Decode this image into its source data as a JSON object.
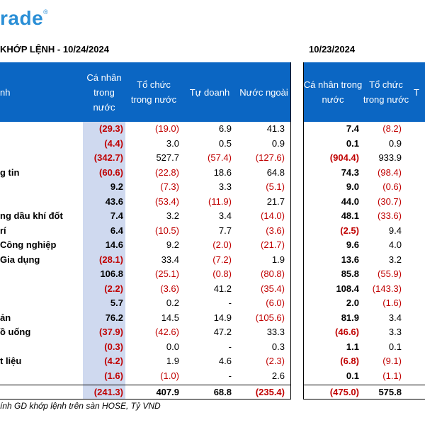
{
  "logo": {
    "text": "rade",
    "mark": "®"
  },
  "left_title": "KHỚP LỆNH - 10/24/2024",
  "right_title": "10/23/2024",
  "headers_left": [
    "nh",
    "Cá nhân trong nước",
    "Tổ chức trong nước",
    "Tự doanh",
    "Nước ngoài"
  ],
  "headers_right": [
    "Cá nhân trong nước",
    "Tổ chức trong nước",
    "T"
  ],
  "rows": [
    {
      "label": "",
      "v": [
        "(29.3)",
        "(19.0)",
        "6.9",
        "41.3"
      ],
      "r": [
        "7.4",
        "(8.2)"
      ]
    },
    {
      "label": "",
      "v": [
        "(4.4)",
        "3.0",
        "0.5",
        "0.9"
      ],
      "r": [
        "0.1",
        "0.9"
      ]
    },
    {
      "label": "",
      "v": [
        "(342.7)",
        "527.7",
        "(57.4)",
        "(127.6)"
      ],
      "r": [
        "(904.4)",
        "933.9"
      ]
    },
    {
      "label": "g tin",
      "v": [
        "(60.6)",
        "(22.8)",
        "18.6",
        "64.8"
      ],
      "r": [
        "74.3",
        "(98.4)"
      ]
    },
    {
      "label": "",
      "v": [
        "9.2",
        "(7.3)",
        "3.3",
        "(5.1)"
      ],
      "r": [
        "9.0",
        "(0.6)"
      ]
    },
    {
      "label": "",
      "v": [
        "43.6",
        "(53.4)",
        "(11.9)",
        "21.7"
      ],
      "r": [
        "44.0",
        "(30.7)"
      ]
    },
    {
      "label": "ng dầu khí đốt",
      "v": [
        "7.4",
        "3.2",
        "3.4",
        "(14.0)"
      ],
      "r": [
        "48.1",
        "(33.6)"
      ]
    },
    {
      "label": "rí",
      "v": [
        "6.4",
        "(10.5)",
        "7.7",
        "(3.6)"
      ],
      "r": [
        "(2.5)",
        "9.4"
      ]
    },
    {
      "label": "Công nghiệp",
      "v": [
        "14.6",
        "9.2",
        "(2.0)",
        "(21.7)"
      ],
      "r": [
        "9.6",
        "4.0"
      ]
    },
    {
      "label": "Gia dụng",
      "v": [
        "(28.1)",
        "33.4",
        "(7.2)",
        "1.9"
      ],
      "r": [
        "13.6",
        "3.2"
      ]
    },
    {
      "label": "",
      "v": [
        "106.8",
        "(25.1)",
        "(0.8)",
        "(80.8)"
      ],
      "r": [
        "85.8",
        "(55.9)"
      ]
    },
    {
      "label": "",
      "v": [
        "(2.2)",
        "(3.6)",
        "41.2",
        "(35.4)"
      ],
      "r": [
        "108.4",
        "(143.3)"
      ]
    },
    {
      "label": "",
      "v": [
        "5.7",
        "0.2",
        "-",
        "(6.0)"
      ],
      "r": [
        "2.0",
        "(1.6)"
      ]
    },
    {
      "label": "ản",
      "v": [
        "76.2",
        "14.5",
        "14.9",
        "(105.6)"
      ],
      "r": [
        "81.9",
        "3.4"
      ]
    },
    {
      "label": "ồ uống",
      "v": [
        "(37.9)",
        "(42.6)",
        "47.2",
        "33.3"
      ],
      "r": [
        "(46.6)",
        "3.3"
      ]
    },
    {
      "label": "",
      "v": [
        "(0.3)",
        "0.0",
        "-",
        "0.3"
      ],
      "r": [
        "1.1",
        "0.1"
      ]
    },
    {
      "label": "t liệu",
      "v": [
        "(4.2)",
        "1.9",
        "4.6",
        "(2.3)"
      ],
      "r": [
        "(6.8)",
        "(9.1)"
      ]
    },
    {
      "label": "",
      "v": [
        "(1.6)",
        "(1.0)",
        "-",
        "2.6"
      ],
      "r": [
        "0.1",
        "(1.1)"
      ]
    }
  ],
  "total": {
    "v": [
      "(241.3)",
      "407.9",
      "68.8",
      "(235.4)"
    ],
    "r": [
      "(475.0)",
      "575.8"
    ]
  },
  "footer": "ính GD khớp lệnh trên sàn HOSE, Tỷ VND",
  "colors": {
    "header_bg": "#0b66c3",
    "shade": "#cfd9ef",
    "negative": "#c00000",
    "logo": "#2b8fd6"
  }
}
